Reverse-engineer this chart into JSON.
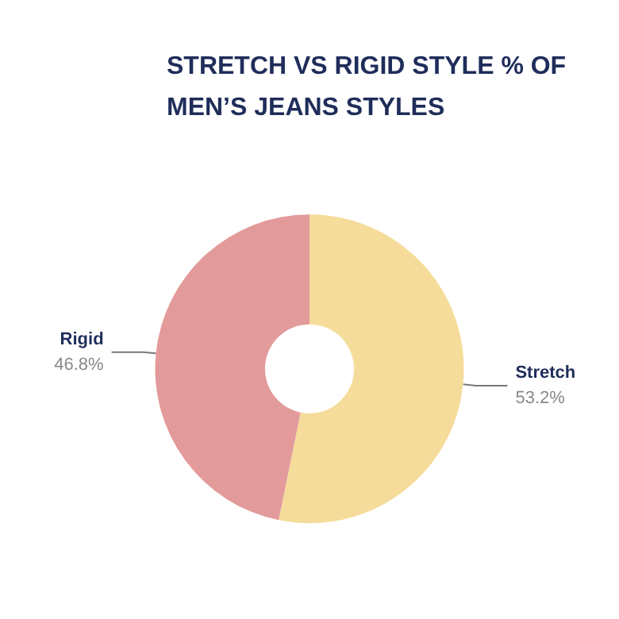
{
  "chart_data": {
    "type": "donut",
    "title": "STRETCH VS RIGID STYLE % OF MEN’S JEANS STYLES",
    "categories": [
      "Stretch",
      "Rigid"
    ],
    "values": [
      53.2,
      46.8
    ],
    "colors": [
      "#f5dc9a",
      "#e39a9a"
    ],
    "value_labels": [
      "53.2%",
      "46.8%"
    ],
    "legend": false
  }
}
